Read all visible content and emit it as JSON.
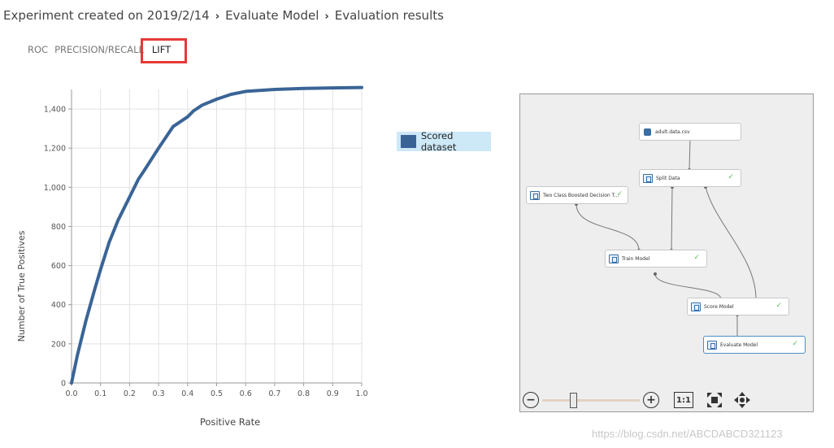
{
  "breadcrumb": {
    "items": [
      "Experiment created on 2019/2/14",
      "Evaluate Model",
      "Evaluation results"
    ],
    "separator": "›"
  },
  "tabs": [
    {
      "label": "ROC",
      "active": false
    },
    {
      "label": "PRECISION/RECALL",
      "active": false
    },
    {
      "label": "LIFT",
      "active": true
    }
  ],
  "chart_data": {
    "type": "line",
    "title": "",
    "xlabel": "Positive Rate",
    "ylabel": "Number of True Positives",
    "xlim": [
      0,
      1
    ],
    "ylim": [
      0,
      1500
    ],
    "x_ticks": [
      "0.0",
      "0.1",
      "0.2",
      "0.3",
      "0.4",
      "0.5",
      "0.6",
      "0.7",
      "0.8",
      "0.9",
      "1.0"
    ],
    "y_ticks": [
      "0",
      "200",
      "400",
      "600",
      "800",
      "1,000",
      "1,200",
      "1,400"
    ],
    "y_tick_values": [
      0,
      200,
      400,
      600,
      800,
      1000,
      1200,
      1400
    ],
    "grid": true,
    "legend_position": "right",
    "series": [
      {
        "name": "Scored dataset",
        "color": "#3a6496",
        "x": [
          0,
          0.02,
          0.05,
          0.08,
          0.1,
          0.13,
          0.16,
          0.2,
          0.23,
          0.25,
          0.3,
          0.35,
          0.4,
          0.42,
          0.45,
          0.5,
          0.55,
          0.6,
          0.7,
          0.8,
          0.9,
          1.0
        ],
        "y": [
          0,
          140,
          320,
          480,
          580,
          720,
          830,
          950,
          1040,
          1085,
          1200,
          1310,
          1360,
          1390,
          1420,
          1450,
          1475,
          1490,
          1500,
          1505,
          1508,
          1510
        ]
      }
    ]
  },
  "legend": {
    "label": "Scored dataset",
    "color": "#3a6496"
  },
  "graph": {
    "nodes": [
      {
        "id": "adult",
        "label": "adult.data.csv",
        "icon": "dataset-icon",
        "check": false
      },
      {
        "id": "split",
        "label": "Split Data",
        "icon": "module-icon",
        "check": true
      },
      {
        "id": "twoclass",
        "label": "Two Class Boosted Decision T...",
        "icon": "module-icon",
        "check": true
      },
      {
        "id": "train",
        "label": "Train Model",
        "icon": "module-icon",
        "check": true
      },
      {
        "id": "score",
        "label": "Score Model",
        "icon": "module-icon",
        "check": true
      },
      {
        "id": "evaluate",
        "label": "Evaluate Model",
        "icon": "module-icon",
        "check": true
      }
    ],
    "check_glyph": "✓",
    "controls": {
      "zoom_out": "−",
      "zoom_in": "+",
      "fit": "1:1",
      "zoom_level": 0.32
    }
  },
  "watermark": "https://blog.csdn.net/ABCDABCD321123"
}
